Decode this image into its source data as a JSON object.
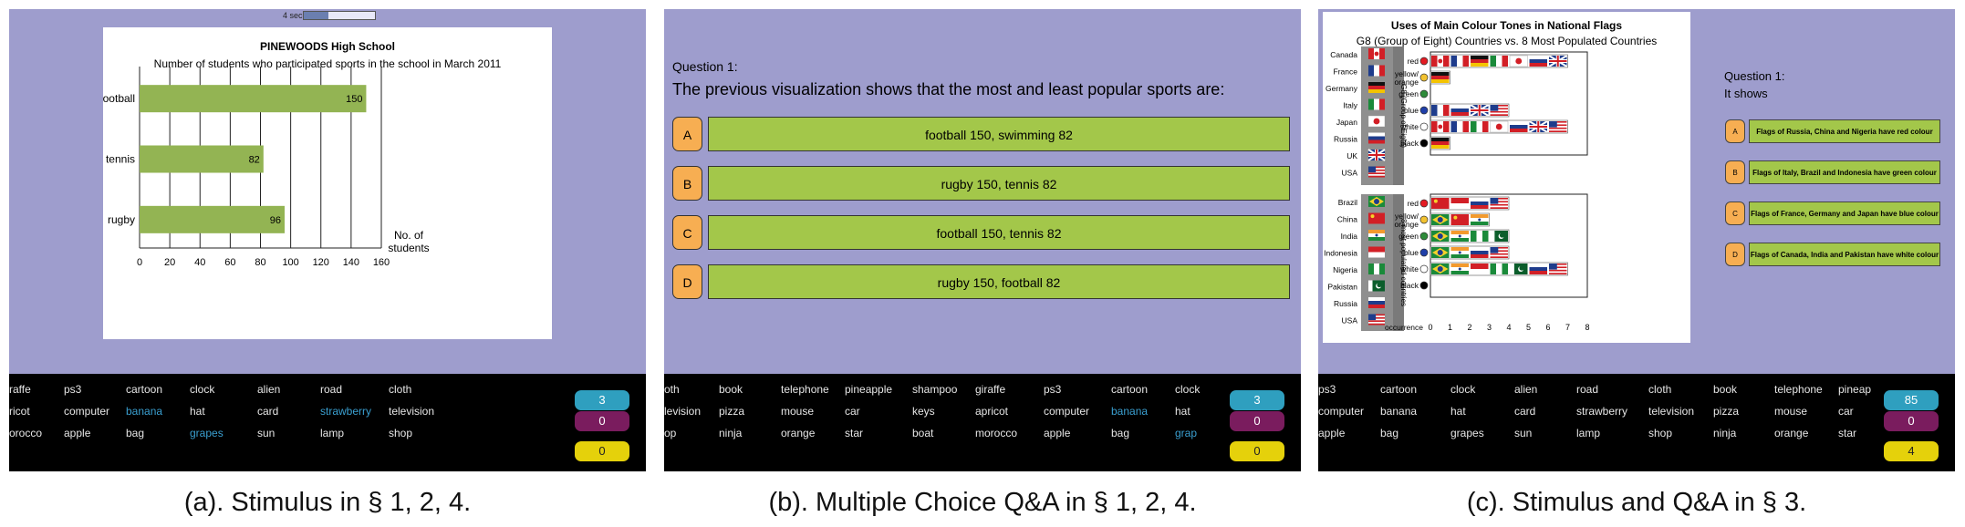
{
  "panel_a": {
    "timer_label": "4 sec.",
    "timer_fraction": 0.35,
    "chart_data": {
      "type": "bar",
      "title": "PINEWOODS High School",
      "subtitle": "Number of students who participated sports in the school in March 2011",
      "categories": [
        "football",
        "tennis",
        "rugby"
      ],
      "values": [
        150,
        82,
        96
      ],
      "xlabel": "No. of students",
      "xlim": [
        0,
        160
      ],
      "xticks": [
        "0",
        "20",
        "40",
        "60",
        "80",
        "100",
        "120",
        "140",
        "160"
      ],
      "grid": true,
      "bar_color": "#93b453"
    },
    "words": [
      [
        "raffe",
        "ps3",
        "cartoon",
        "clock",
        "alien",
        "road",
        "cloth"
      ],
      [
        "ricot",
        "computer",
        "banana",
        "hat",
        "card",
        "strawberry",
        "television"
      ],
      [
        "orocco",
        "apple",
        "bag",
        "grapes",
        "sun",
        "lamp",
        "shop"
      ]
    ],
    "counters": [
      "3",
      "0",
      "0"
    ],
    "caption": "(a). Stimulus in § 1, 2, 4."
  },
  "panel_b": {
    "question_label": "Question 1:",
    "question_text": "The previous visualization shows that the most and least popular sports are:",
    "options": [
      {
        "letter": "A",
        "text": "football 150, swimming 82"
      },
      {
        "letter": "B",
        "text": "rugby 150, tennis 82"
      },
      {
        "letter": "C",
        "text": "football 150, tennis 82"
      },
      {
        "letter": "D",
        "text": "rugby 150, football 82"
      }
    ],
    "words": [
      [
        "oth",
        "book",
        "telephone",
        "pineapple",
        "shampoo",
        "giraffe",
        "ps3",
        "cartoon",
        "clock"
      ],
      [
        "levision",
        "pizza",
        "mouse",
        "car",
        "keys",
        "apricot",
        "computer",
        "banana",
        "hat"
      ],
      [
        "op",
        "ninja",
        "orange",
        "star",
        "boat",
        "morocco",
        "apple",
        "bag",
        "grap"
      ]
    ],
    "counters": [
      "3",
      "0",
      "0"
    ],
    "caption": "(b). Multiple Choice Q&A in § 1, 2, 4."
  },
  "panel_c": {
    "chart_data": {
      "type": "table",
      "title": "Uses of Main Colour Tones in National Flags",
      "subtitle": "G8 (Group of Eight) Countries vs. 8 Most Populated Countries",
      "group1_label": "G8 (Group of Eight)",
      "group1_countries": [
        "Canada",
        "France",
        "Germany",
        "Italy",
        "Japan",
        "Russia",
        "UK",
        "USA"
      ],
      "group2_label": "8 most populated countries",
      "group2_countries": [
        "Brazil",
        "China",
        "India",
        "Indonesia",
        "Nigeria",
        "Pakistan",
        "Russia",
        "USA"
      ],
      "colours": [
        "red",
        "yellow/ orange",
        "green",
        "blue",
        "white",
        "black"
      ],
      "colour_dots": [
        "#e31b23",
        "#f2c230",
        "#2e8b3a",
        "#1f3fa8",
        "#ffffff",
        "#000000"
      ],
      "group1_occurrence": [
        7,
        1,
        0,
        4,
        7,
        1
      ],
      "group2_occurrence": [
        4,
        3,
        4,
        4,
        7,
        0
      ],
      "xlabel": "occurrence",
      "xticks": [
        "0",
        "1",
        "2",
        "3",
        "4",
        "5",
        "6",
        "7",
        "8"
      ],
      "xlim": [
        0,
        8
      ]
    },
    "question_label": "Question 1:",
    "question_text": "It shows",
    "options": [
      {
        "letter": "A",
        "text": "Flags of Russia, China and Nigeria have red colour"
      },
      {
        "letter": "B",
        "text": "Flags of Italy, Brazil and Indonesia have green colour"
      },
      {
        "letter": "C",
        "text": "Flags of France, Germany and Japan have blue colour"
      },
      {
        "letter": "D",
        "text": "Flags of Canada, India and Pakistan have white colour"
      }
    ],
    "words": [
      [
        "ps3",
        "cartoon",
        "clock",
        "alien",
        "road",
        "cloth",
        "book",
        "telephone",
        "pineap"
      ],
      [
        "computer",
        "banana",
        "hat",
        "card",
        "strawberry",
        "television",
        "pizza",
        "mouse",
        "car"
      ],
      [
        "apple",
        "bag",
        "grapes",
        "sun",
        "lamp",
        "shop",
        "ninja",
        "orange",
        "star"
      ]
    ],
    "counters": [
      "85",
      "0",
      "4"
    ],
    "caption": "(c). Stimulus and Q&A in § 3."
  }
}
